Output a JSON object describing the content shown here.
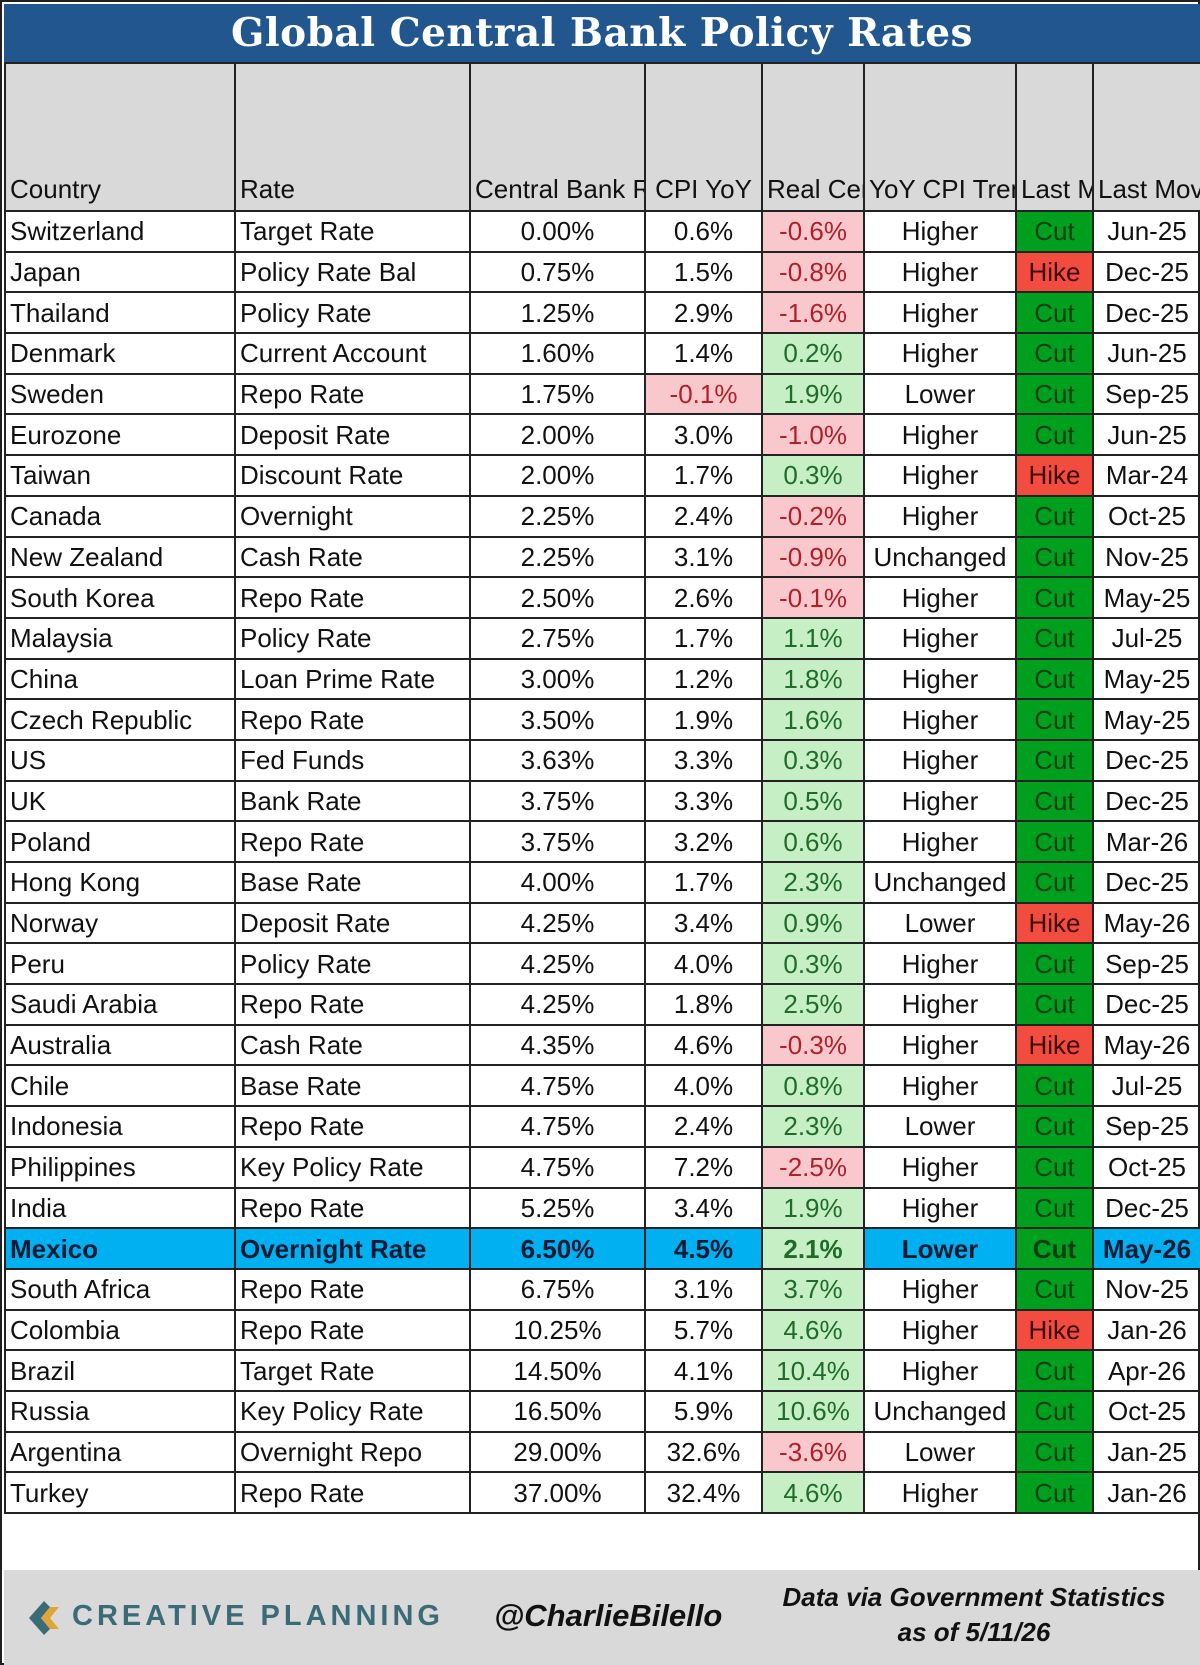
{
  "title": "Global Central Bank Policy Rates",
  "headers": [
    "Country",
    "Rate",
    "Central Bank Rate (Today)",
    "CPI YoY",
    "Real Central Bank Rate",
    "YoY CPI Trend vs. Prior Reading",
    "Last Move",
    "Last Move Month"
  ],
  "colors": {
    "title_bg": "#21568f",
    "header_bg": "#d9d9d9",
    "negative_bg": "#f8c8cc",
    "negative_text": "#b0202a",
    "positive_bg": "#c7efc6",
    "positive_text": "#1e6b2a",
    "cut_bg": "#00a01e",
    "hike_bg": "#f24c3f",
    "highlight_bg": "#00b0f0"
  },
  "chart_data": {
    "type": "table",
    "highlighted_country": "Mexico",
    "columns": [
      "Country",
      "Rate",
      "Central Bank Rate (Today)",
      "CPI YoY",
      "Real Central Bank Rate",
      "YoY CPI Trend vs. Prior Reading",
      "Last Move",
      "Last Move Month"
    ],
    "rows": [
      {
        "country": "Switzerland",
        "rate": "Target Rate",
        "cb_rate": "0.00%",
        "cpi": "0.6%",
        "real": "-0.6%",
        "trend": "Higher",
        "move": "Cut",
        "month": "Jun-25"
      },
      {
        "country": "Japan",
        "rate": "Policy Rate Bal",
        "cb_rate": "0.75%",
        "cpi": "1.5%",
        "real": "-0.8%",
        "trend": "Higher",
        "move": "Hike",
        "month": "Dec-25"
      },
      {
        "country": "Thailand",
        "rate": "Policy Rate",
        "cb_rate": "1.25%",
        "cpi": "2.9%",
        "real": "-1.6%",
        "trend": "Higher",
        "move": "Cut",
        "month": "Dec-25"
      },
      {
        "country": "Denmark",
        "rate": "Current Account",
        "cb_rate": "1.60%",
        "cpi": "1.4%",
        "real": "0.2%",
        "trend": "Higher",
        "move": "Cut",
        "month": "Jun-25"
      },
      {
        "country": "Sweden",
        "rate": "Repo Rate",
        "cb_rate": "1.75%",
        "cpi": "-0.1%",
        "real": "1.9%",
        "trend": "Lower",
        "move": "Cut",
        "month": "Sep-25"
      },
      {
        "country": "Eurozone",
        "rate": "Deposit Rate",
        "cb_rate": "2.00%",
        "cpi": "3.0%",
        "real": "-1.0%",
        "trend": "Higher",
        "move": "Cut",
        "month": "Jun-25"
      },
      {
        "country": "Taiwan",
        "rate": "Discount Rate",
        "cb_rate": "2.00%",
        "cpi": "1.7%",
        "real": "0.3%",
        "trend": "Higher",
        "move": "Hike",
        "month": "Mar-24"
      },
      {
        "country": "Canada",
        "rate": "Overnight",
        "cb_rate": "2.25%",
        "cpi": "2.4%",
        "real": "-0.2%",
        "trend": "Higher",
        "move": "Cut",
        "month": "Oct-25"
      },
      {
        "country": "New Zealand",
        "rate": "Cash Rate",
        "cb_rate": "2.25%",
        "cpi": "3.1%",
        "real": "-0.9%",
        "trend": "Unchanged",
        "move": "Cut",
        "month": "Nov-25"
      },
      {
        "country": "South Korea",
        "rate": "Repo Rate",
        "cb_rate": "2.50%",
        "cpi": "2.6%",
        "real": "-0.1%",
        "trend": "Higher",
        "move": "Cut",
        "month": "May-25"
      },
      {
        "country": "Malaysia",
        "rate": "Policy Rate",
        "cb_rate": "2.75%",
        "cpi": "1.7%",
        "real": "1.1%",
        "trend": "Higher",
        "move": "Cut",
        "month": "Jul-25"
      },
      {
        "country": "China",
        "rate": "Loan Prime Rate",
        "cb_rate": "3.00%",
        "cpi": "1.2%",
        "real": "1.8%",
        "trend": "Higher",
        "move": "Cut",
        "month": "May-25"
      },
      {
        "country": "Czech Republic",
        "rate": "Repo Rate",
        "cb_rate": "3.50%",
        "cpi": "1.9%",
        "real": "1.6%",
        "trend": "Higher",
        "move": "Cut",
        "month": "May-25"
      },
      {
        "country": "US",
        "rate": "Fed Funds",
        "cb_rate": "3.63%",
        "cpi": "3.3%",
        "real": "0.3%",
        "trend": "Higher",
        "move": "Cut",
        "month": "Dec-25"
      },
      {
        "country": "UK",
        "rate": "Bank Rate",
        "cb_rate": "3.75%",
        "cpi": "3.3%",
        "real": "0.5%",
        "trend": "Higher",
        "move": "Cut",
        "month": "Dec-25"
      },
      {
        "country": "Poland",
        "rate": "Repo Rate",
        "cb_rate": "3.75%",
        "cpi": "3.2%",
        "real": "0.6%",
        "trend": "Higher",
        "move": "Cut",
        "month": "Mar-26"
      },
      {
        "country": "Hong Kong",
        "rate": "Base Rate",
        "cb_rate": "4.00%",
        "cpi": "1.7%",
        "real": "2.3%",
        "trend": "Unchanged",
        "move": "Cut",
        "month": "Dec-25"
      },
      {
        "country": "Norway",
        "rate": "Deposit Rate",
        "cb_rate": "4.25%",
        "cpi": "3.4%",
        "real": "0.9%",
        "trend": "Lower",
        "move": "Hike",
        "month": "May-26"
      },
      {
        "country": "Peru",
        "rate": "Policy Rate",
        "cb_rate": "4.25%",
        "cpi": "4.0%",
        "real": "0.3%",
        "trend": "Higher",
        "move": "Cut",
        "month": "Sep-25"
      },
      {
        "country": "Saudi Arabia",
        "rate": "Repo Rate",
        "cb_rate": "4.25%",
        "cpi": "1.8%",
        "real": "2.5%",
        "trend": "Higher",
        "move": "Cut",
        "month": "Dec-25"
      },
      {
        "country": "Australia",
        "rate": "Cash Rate",
        "cb_rate": "4.35%",
        "cpi": "4.6%",
        "real": "-0.3%",
        "trend": "Higher",
        "move": "Hike",
        "month": "May-26"
      },
      {
        "country": "Chile",
        "rate": "Base Rate",
        "cb_rate": "4.75%",
        "cpi": "4.0%",
        "real": "0.8%",
        "trend": "Higher",
        "move": "Cut",
        "month": "Jul-25"
      },
      {
        "country": "Indonesia",
        "rate": "Repo Rate",
        "cb_rate": "4.75%",
        "cpi": "2.4%",
        "real": "2.3%",
        "trend": "Lower",
        "move": "Cut",
        "month": "Sep-25"
      },
      {
        "country": "Philippines",
        "rate": "Key Policy Rate",
        "cb_rate": "4.75%",
        "cpi": "7.2%",
        "real": "-2.5%",
        "trend": "Higher",
        "move": "Cut",
        "month": "Oct-25"
      },
      {
        "country": "India",
        "rate": "Repo Rate",
        "cb_rate": "5.25%",
        "cpi": "3.4%",
        "real": "1.9%",
        "trend": "Higher",
        "move": "Cut",
        "month": "Dec-25"
      },
      {
        "country": "Mexico",
        "rate": "Overnight Rate",
        "cb_rate": "6.50%",
        "cpi": "4.5%",
        "real": "2.1%",
        "trend": "Lower",
        "move": "Cut",
        "month": "May-26"
      },
      {
        "country": "South Africa",
        "rate": "Repo Rate",
        "cb_rate": "6.75%",
        "cpi": "3.1%",
        "real": "3.7%",
        "trend": "Higher",
        "move": "Cut",
        "month": "Nov-25"
      },
      {
        "country": "Colombia",
        "rate": "Repo Rate",
        "cb_rate": "10.25%",
        "cpi": "5.7%",
        "real": "4.6%",
        "trend": "Higher",
        "move": "Hike",
        "month": "Jan-26"
      },
      {
        "country": "Brazil",
        "rate": "Target Rate",
        "cb_rate": "14.50%",
        "cpi": "4.1%",
        "real": "10.4%",
        "trend": "Higher",
        "move": "Cut",
        "month": "Apr-26"
      },
      {
        "country": "Russia",
        "rate": "Key Policy Rate",
        "cb_rate": "16.50%",
        "cpi": "5.9%",
        "real": "10.6%",
        "trend": "Unchanged",
        "move": "Cut",
        "month": "Oct-25"
      },
      {
        "country": "Argentina",
        "rate": "Overnight Repo",
        "cb_rate": "29.00%",
        "cpi": "32.6%",
        "real": "-3.6%",
        "trend": "Lower",
        "move": "Cut",
        "month": "Jan-25"
      },
      {
        "country": "Turkey",
        "rate": "Repo Rate",
        "cb_rate": "37.00%",
        "cpi": "32.4%",
        "real": "4.6%",
        "trend": "Higher",
        "move": "Cut",
        "month": "Jan-26"
      }
    ]
  },
  "footer": {
    "brand": "CREATIVE PLANNING",
    "logo_icon": "creative-planning-logo-icon",
    "handle": "@CharlieBilello",
    "source_line1": "Data via Government Statistics",
    "source_line2": "as of 5/11/26"
  }
}
